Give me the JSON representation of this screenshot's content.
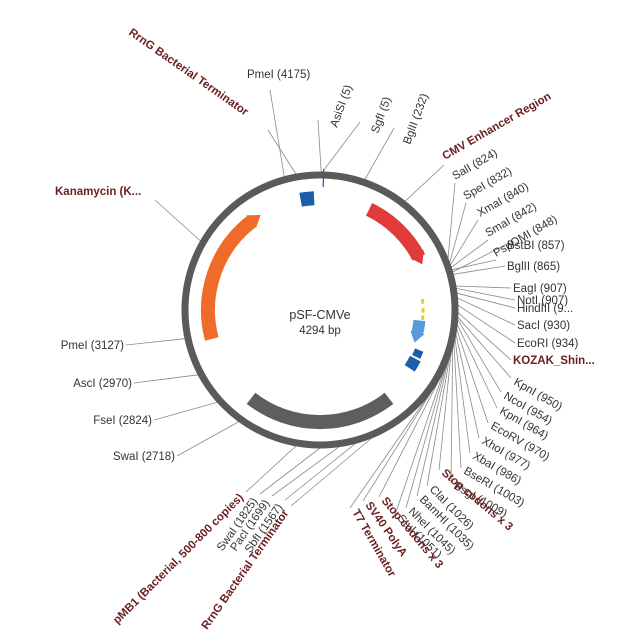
{
  "plasmid": {
    "name": "pSF-CMVe",
    "length": "4294 bp"
  },
  "colors": {
    "backbone": "#5a5a5a",
    "cmv_enhancer": "#e03a3a",
    "kanamycin": "#f06a2a",
    "pmb1": "#5e5e5e",
    "terminator": "#1a5fa8",
    "insert": "#5a9ad8",
    "kozak": "#d8d81c",
    "site_text": "#333333",
    "feature_text": "#6b1f1f"
  },
  "site_labels": [
    "PmeI (4175)",
    "AsiSI (5)",
    "SgfI (5)",
    "BglII (232)",
    "SalI (824)",
    "SpeI (832)",
    "XmaI (840)",
    "SmaI (842)",
    "PspOMI (848)",
    "BstBI (857)",
    "BglII (865)",
    "EagI (907)",
    "NotI (907)",
    "HindIII (9...",
    "SacI (930)",
    "EcoRI (934)",
    "KpnI (950)",
    "NcoI (954)",
    "KpnI (964)",
    "EcoRV (970)",
    "XhoI (977)",
    "XbaI (986)",
    "BseRI (1003)",
    "BsgI (1009)",
    "ClaI (1026)",
    "BamHI (1035)",
    "NheI (1045)",
    "StuI (1051)",
    "SbfI (1567)",
    "PacI (1699)",
    "SwaI (1825)",
    "PmeI (3127)",
    "AscI (2970)",
    "FseI (2824)",
    "SwaI (2718)"
  ],
  "feature_labels": [
    "RrnG Bacterial Terminator",
    "CMV Enhancer Region",
    "Kanamycin (K...",
    "KOZAK_Shin...",
    "Stop codons x 3",
    "Stop codons x 3",
    "SV40 PolyA",
    "T7 Terminator",
    "RrnG Bacterial Terminator",
    "pMB1 (Bacterial, 500-800 copies)"
  ]
}
